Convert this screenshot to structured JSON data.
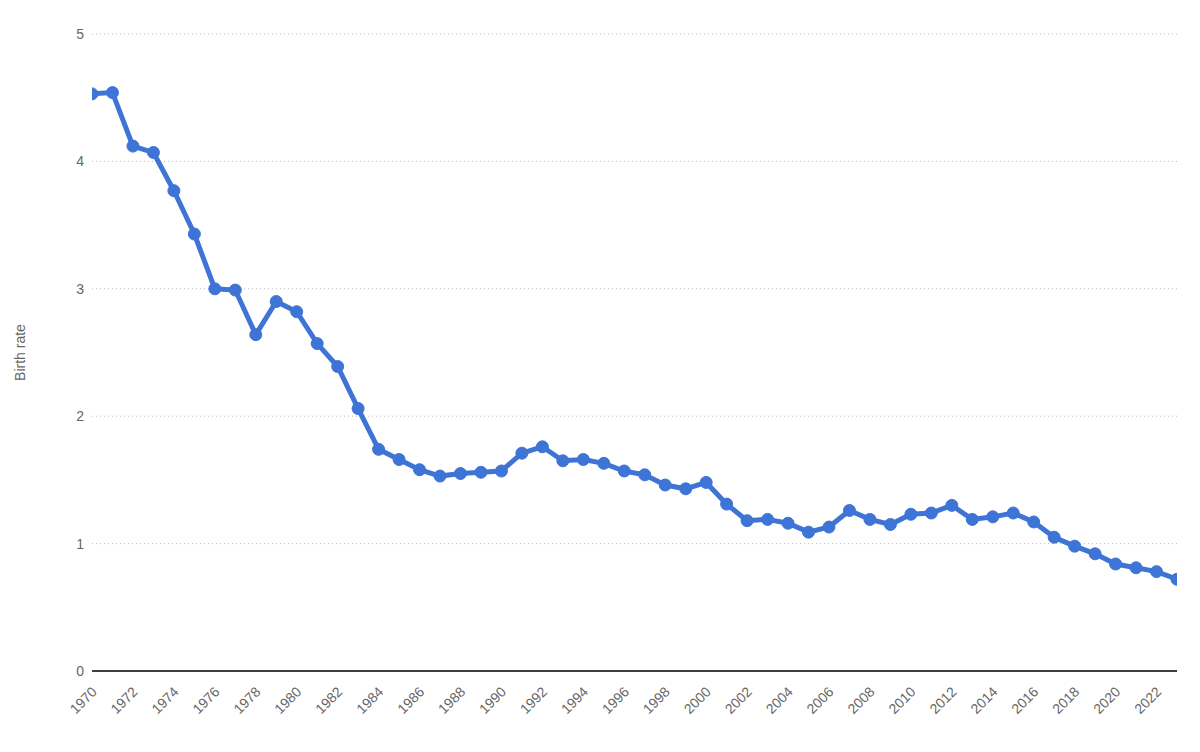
{
  "chart_data": {
    "type": "line",
    "y_label": "Birth rate",
    "x": [
      1970,
      1971,
      1972,
      1973,
      1974,
      1975,
      1976,
      1977,
      1978,
      1979,
      1980,
      1981,
      1982,
      1983,
      1984,
      1985,
      1986,
      1987,
      1988,
      1989,
      1990,
      1991,
      1992,
      1993,
      1994,
      1995,
      1996,
      1997,
      1998,
      1999,
      2000,
      2001,
      2002,
      2003,
      2004,
      2005,
      2006,
      2007,
      2008,
      2009,
      2010,
      2011,
      2012,
      2013,
      2014,
      2015,
      2016,
      2017,
      2018,
      2019,
      2020,
      2021,
      2022,
      2023
    ],
    "values": [
      4.53,
      4.54,
      4.12,
      4.07,
      3.77,
      3.43,
      3.0,
      2.99,
      2.64,
      2.9,
      2.82,
      2.57,
      2.39,
      2.06,
      1.74,
      1.66,
      1.58,
      1.53,
      1.55,
      1.56,
      1.57,
      1.71,
      1.76,
      1.65,
      1.66,
      1.63,
      1.57,
      1.54,
      1.46,
      1.43,
      1.48,
      1.31,
      1.18,
      1.19,
      1.16,
      1.09,
      1.13,
      1.26,
      1.19,
      1.15,
      1.23,
      1.24,
      1.3,
      1.19,
      1.21,
      1.24,
      1.17,
      1.05,
      0.98,
      0.92,
      0.84,
      0.81,
      0.78,
      0.72
    ],
    "color": "#3e74d5",
    "marker": "circle",
    "xlim": [
      1970,
      2023
    ],
    "xticks": [
      1970,
      1972,
      1974,
      1976,
      1978,
      1980,
      1982,
      1984,
      1986,
      1988,
      1990,
      1992,
      1994,
      1996,
      1998,
      2000,
      2002,
      2004,
      2006,
      2008,
      2010,
      2012,
      2014,
      2016,
      2018,
      2020,
      2022
    ],
    "ylim": [
      0,
      5
    ],
    "yticks": [
      0,
      1,
      2,
      3,
      4,
      5
    ],
    "grid": true
  }
}
